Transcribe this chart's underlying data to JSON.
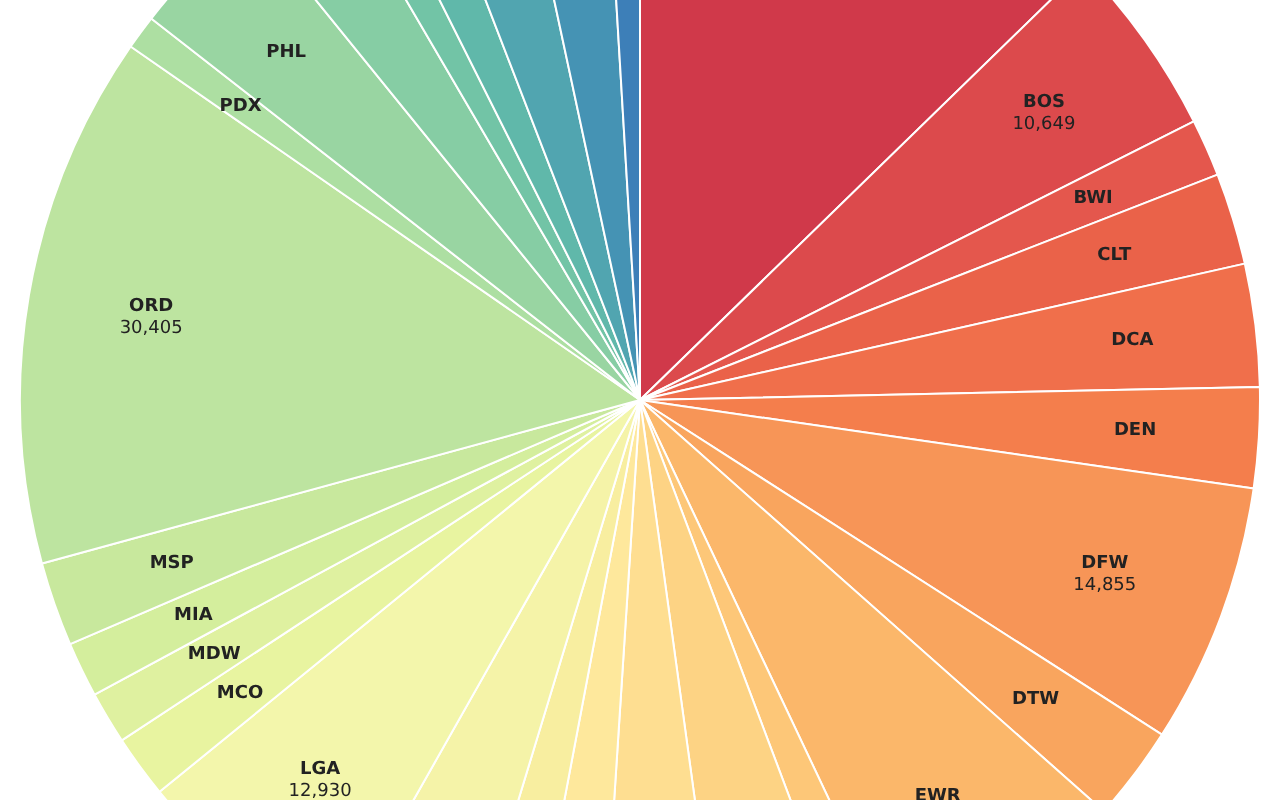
{
  "chart_data": {
    "type": "pie",
    "categories": [
      null,
      "BOS",
      "BWI",
      "CLT",
      "DCA",
      "DEN",
      "DFW",
      "DTW",
      "EWR",
      null,
      null,
      null,
      null,
      null,
      null,
      "LGA",
      "MCO",
      "MDW",
      "MIA",
      "MSP",
      "ORD",
      "PDX",
      "PHL",
      null,
      null,
      null,
      null,
      null,
      null
    ],
    "values": [
      27800,
      10649,
      3280,
      5230,
      6990,
      5720,
      14855,
      5410,
      14040,
      2860,
      7780,
      6990,
      4260,
      3770,
      7660,
      12930,
      3590,
      2980,
      3160,
      4800,
      30405,
      1950,
      7900,
      5290,
      2250,
      3340,
      5470,
      5290,
      2070
    ],
    "value_labels": [
      null,
      "10,649",
      null,
      null,
      null,
      null,
      "14,855",
      null,
      null,
      null,
      null,
      null,
      null,
      null,
      null,
      "12,930",
      null,
      null,
      null,
      null,
      "30,405",
      null,
      null,
      null,
      null,
      null,
      null,
      null,
      null
    ],
    "colors": [
      "#d0394a",
      "#dc4a4c",
      "#e4574d",
      "#ea6249",
      "#f06f4b",
      "#f47e4c",
      "#f79557",
      "#f9a55e",
      "#fbb76a",
      "#fdc778",
      "#fdd384",
      "#fede91",
      "#fee89c",
      "#f8eea0",
      "#f5f3a8",
      "#f3f6ab",
      "#e8f4a0",
      "#dff1a0",
      "#d4ee9d",
      "#c8e89d",
      "#bde4a0",
      "#addfa2",
      "#99d5a2",
      "#86cda4",
      "#72c4a6",
      "#60b8aa",
      "#51a5b0",
      "#4593b4",
      "#3d7fb8"
    ],
    "legend": false
  }
}
